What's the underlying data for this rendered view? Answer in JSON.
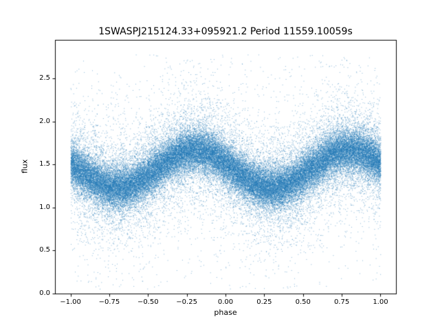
{
  "figure": {
    "background": "#ffffff",
    "axes_color": "#000000"
  },
  "chart_data": {
    "type": "scatter",
    "title": "1SWASPJ215124.33+095921.2 Period 11559.10059s",
    "xlabel": "phase",
    "ylabel": "flux",
    "xlim": [
      -1.1,
      1.1
    ],
    "ylim": [
      0,
      2.95
    ],
    "x_ticks": [
      -1.0,
      -0.75,
      -0.5,
      -0.25,
      0.0,
      0.25,
      0.5,
      0.75,
      1.0
    ],
    "x_tick_labels": [
      "−1.00",
      "−0.75",
      "−0.50",
      "−0.25",
      "0.00",
      "0.25",
      "0.50",
      "0.75",
      "1.00"
    ],
    "y_ticks": [
      0.0,
      0.5,
      1.0,
      1.5,
      2.0,
      2.5
    ],
    "y_tick_labels": [
      "0.0",
      "0.5",
      "1.0",
      "1.5",
      "2.0",
      "2.5"
    ],
    "grid": false,
    "legend": null,
    "marker_color": "#1f77b4",
    "marker_alpha": 0.55,
    "marker_size_px": 1,
    "n_points": 60000,
    "model": {
      "description": "phase-folded sinusoidal light curve with gaussian scatter and sparse outliers",
      "x_range": [
        -1.0,
        1.0
      ],
      "mean_flux": 1.45,
      "amplitude": 0.22,
      "peak_phase": -0.2,
      "period_in_phase": 1.0,
      "noise_components": [
        {
          "fraction": 0.72,
          "sigma": 0.12
        },
        {
          "fraction": 0.22,
          "sigma": 0.28
        },
        {
          "fraction": 0.06,
          "sigma": 0.65
        }
      ],
      "flux_clip": [
        0.05,
        2.78
      ],
      "seed": 42
    }
  }
}
